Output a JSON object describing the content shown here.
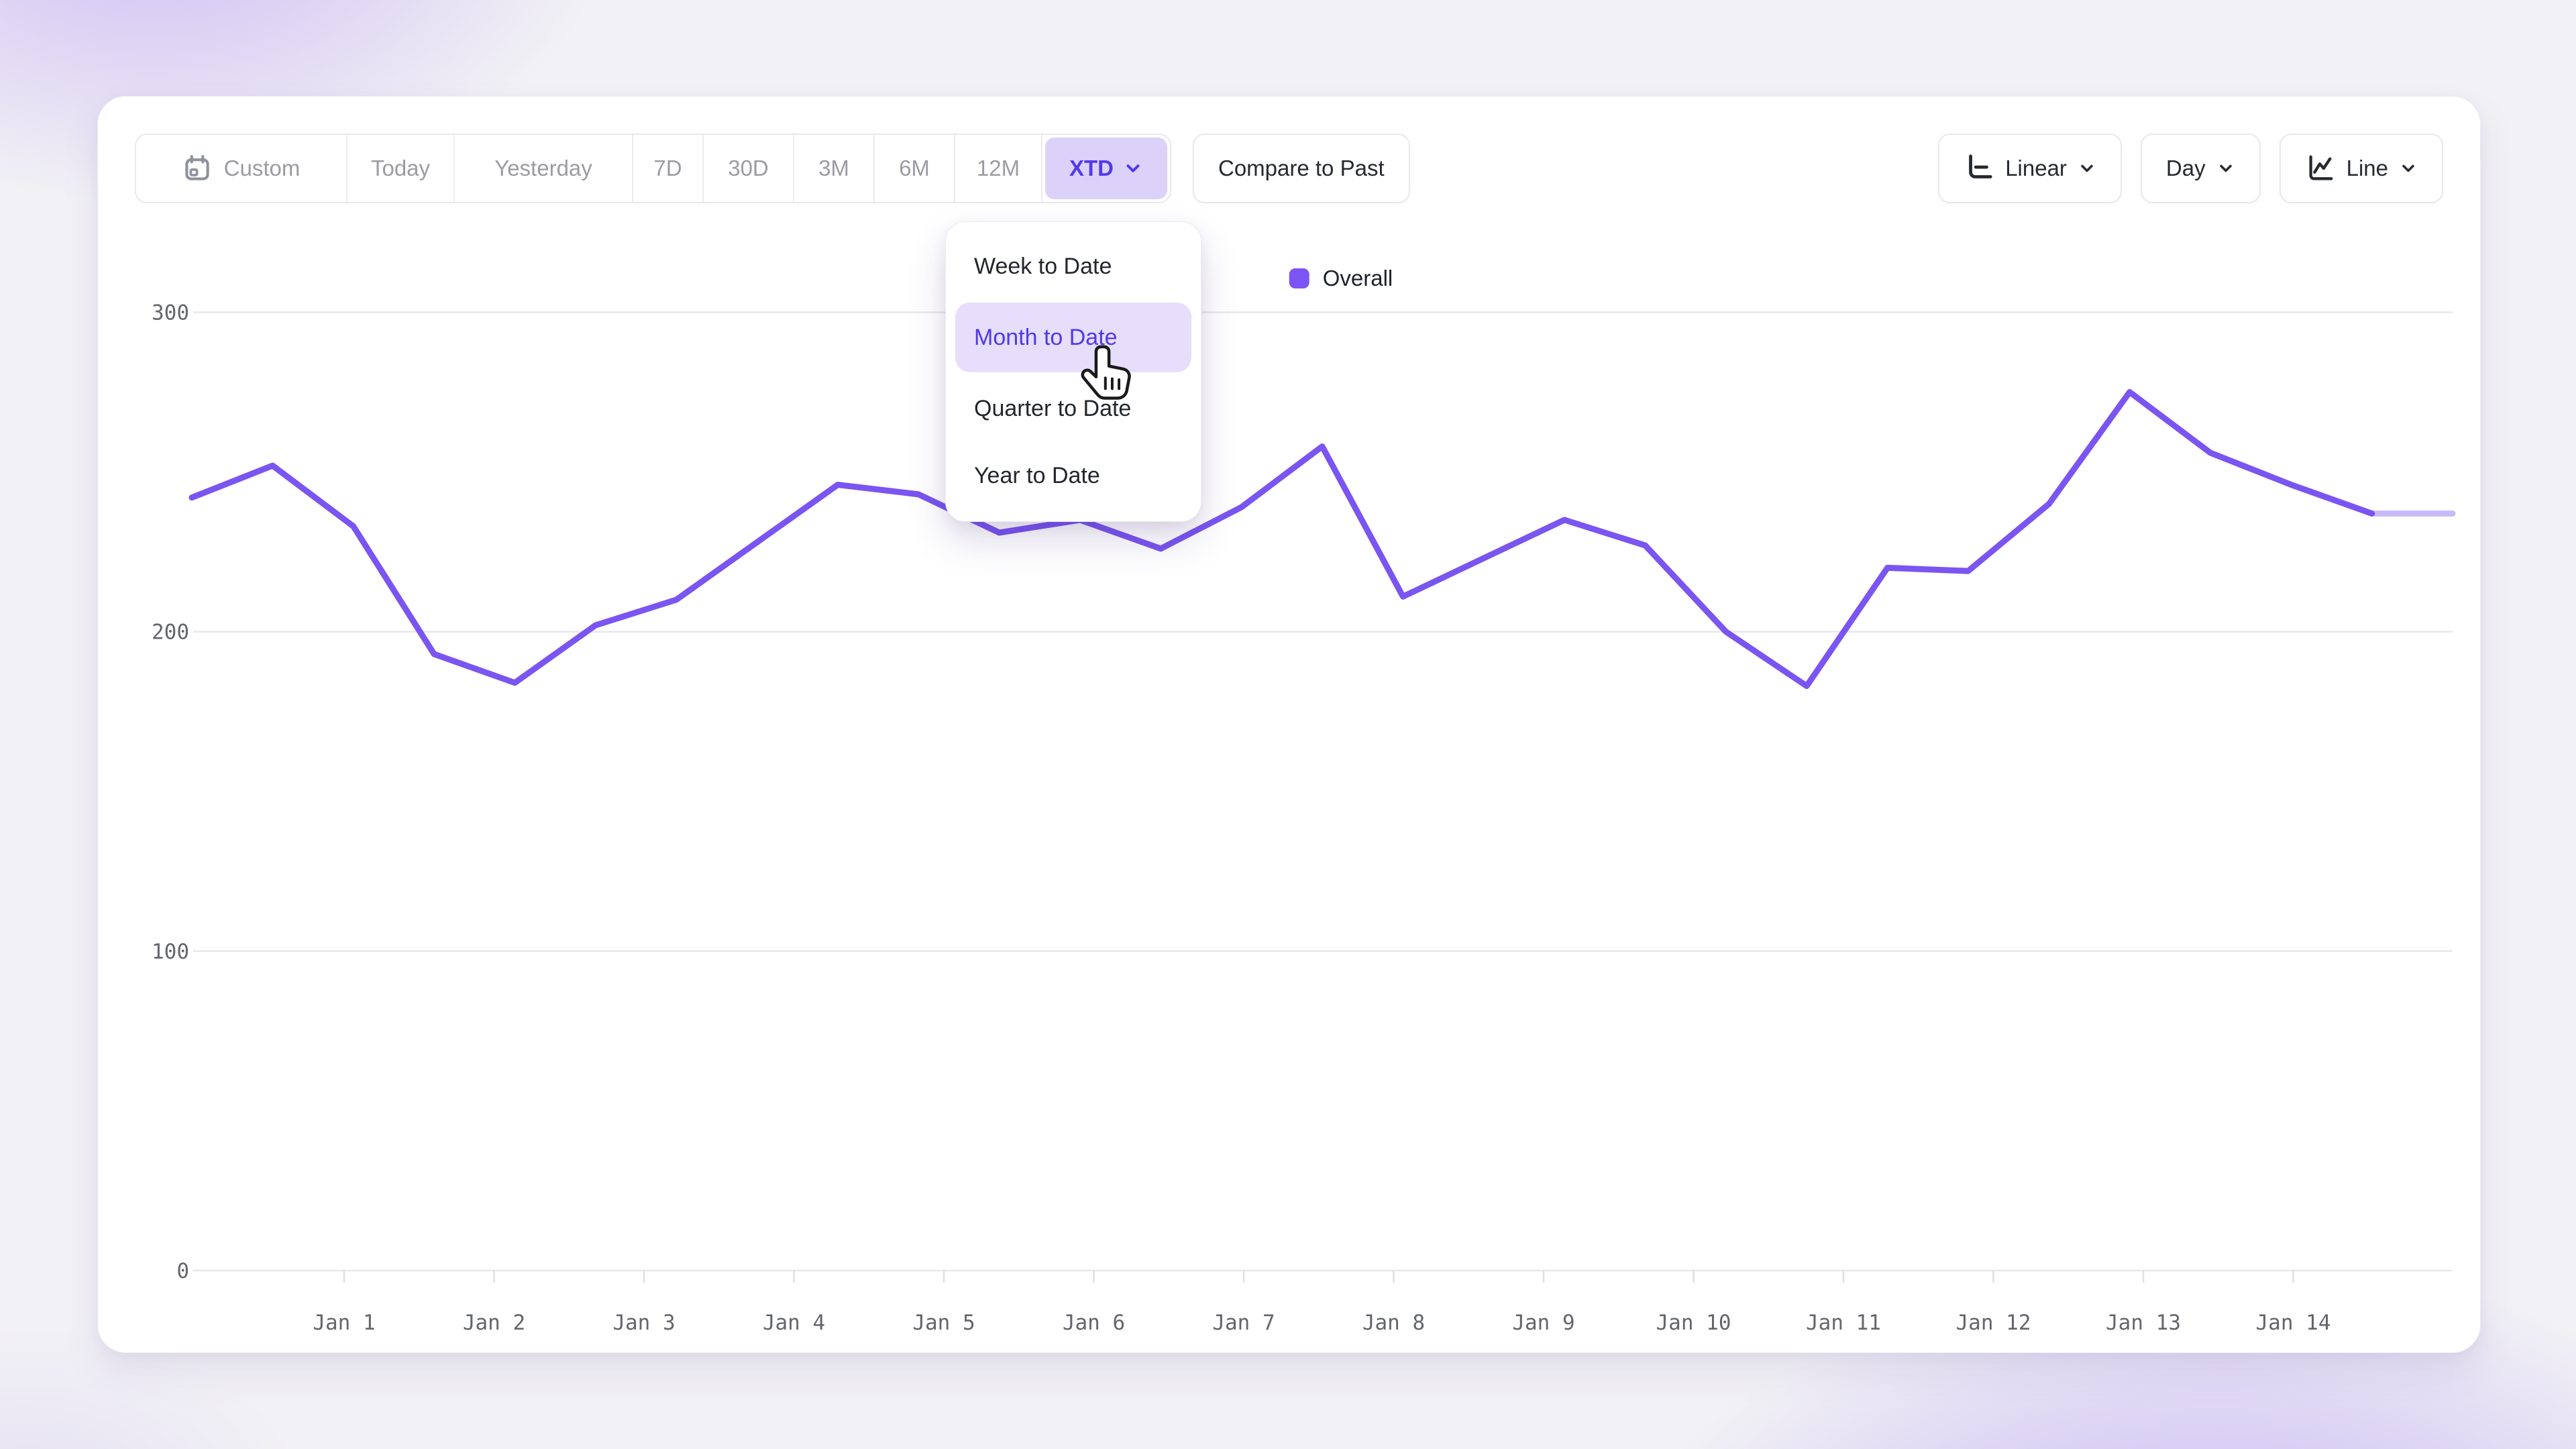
{
  "toolbar": {
    "date_ranges": [
      "Custom",
      "Today",
      "Yesterday",
      "7D",
      "30D",
      "3M",
      "6M",
      "12M",
      "XTD"
    ],
    "selected_range": "XTD",
    "compare_label": "Compare to Past",
    "scale_label": "Linear",
    "interval_label": "Day",
    "chart_type_label": "Line"
  },
  "dropdown": {
    "items": [
      "Week to Date",
      "Month to Date",
      "Quarter to Date",
      "Year to Date"
    ],
    "highlighted_item": "Month to Date"
  },
  "legend": {
    "label": "Overall",
    "color": "#7c54f4"
  },
  "colors": {
    "accent": "#5138ee",
    "accent_bg": "#dcd2f9",
    "line": "#7a55f1",
    "line_faded": "#c9baf9",
    "grid": "#e8e8ec",
    "axis_text": "#64666b"
  },
  "chart_data": {
    "type": "line",
    "title": "",
    "series": [
      {
        "name": "Overall",
        "color": "#7a55f1",
        "values": [
          242,
          252,
          233,
          193,
          184,
          202,
          210,
          228,
          246,
          243,
          231,
          235,
          226,
          239,
          258,
          211,
          223,
          235,
          227,
          200,
          183,
          220,
          219,
          240,
          275,
          256,
          246,
          237,
          237
        ]
      }
    ],
    "incomplete_tail_points": 1,
    "x_tick_labels": [
      "Jan 1",
      "Jan 2",
      "Jan 3",
      "Jan 4",
      "Jan 5",
      "Jan 6",
      "Jan 7",
      "Jan 8",
      "Jan 9",
      "Jan 10",
      "Jan 11",
      "Jan 12",
      "Jan 13",
      "Jan 14"
    ],
    "y_ticks": [
      0,
      100,
      200,
      300
    ],
    "ylim": [
      0,
      320
    ],
    "grid": "horizontal",
    "legend_position": "top-center"
  }
}
